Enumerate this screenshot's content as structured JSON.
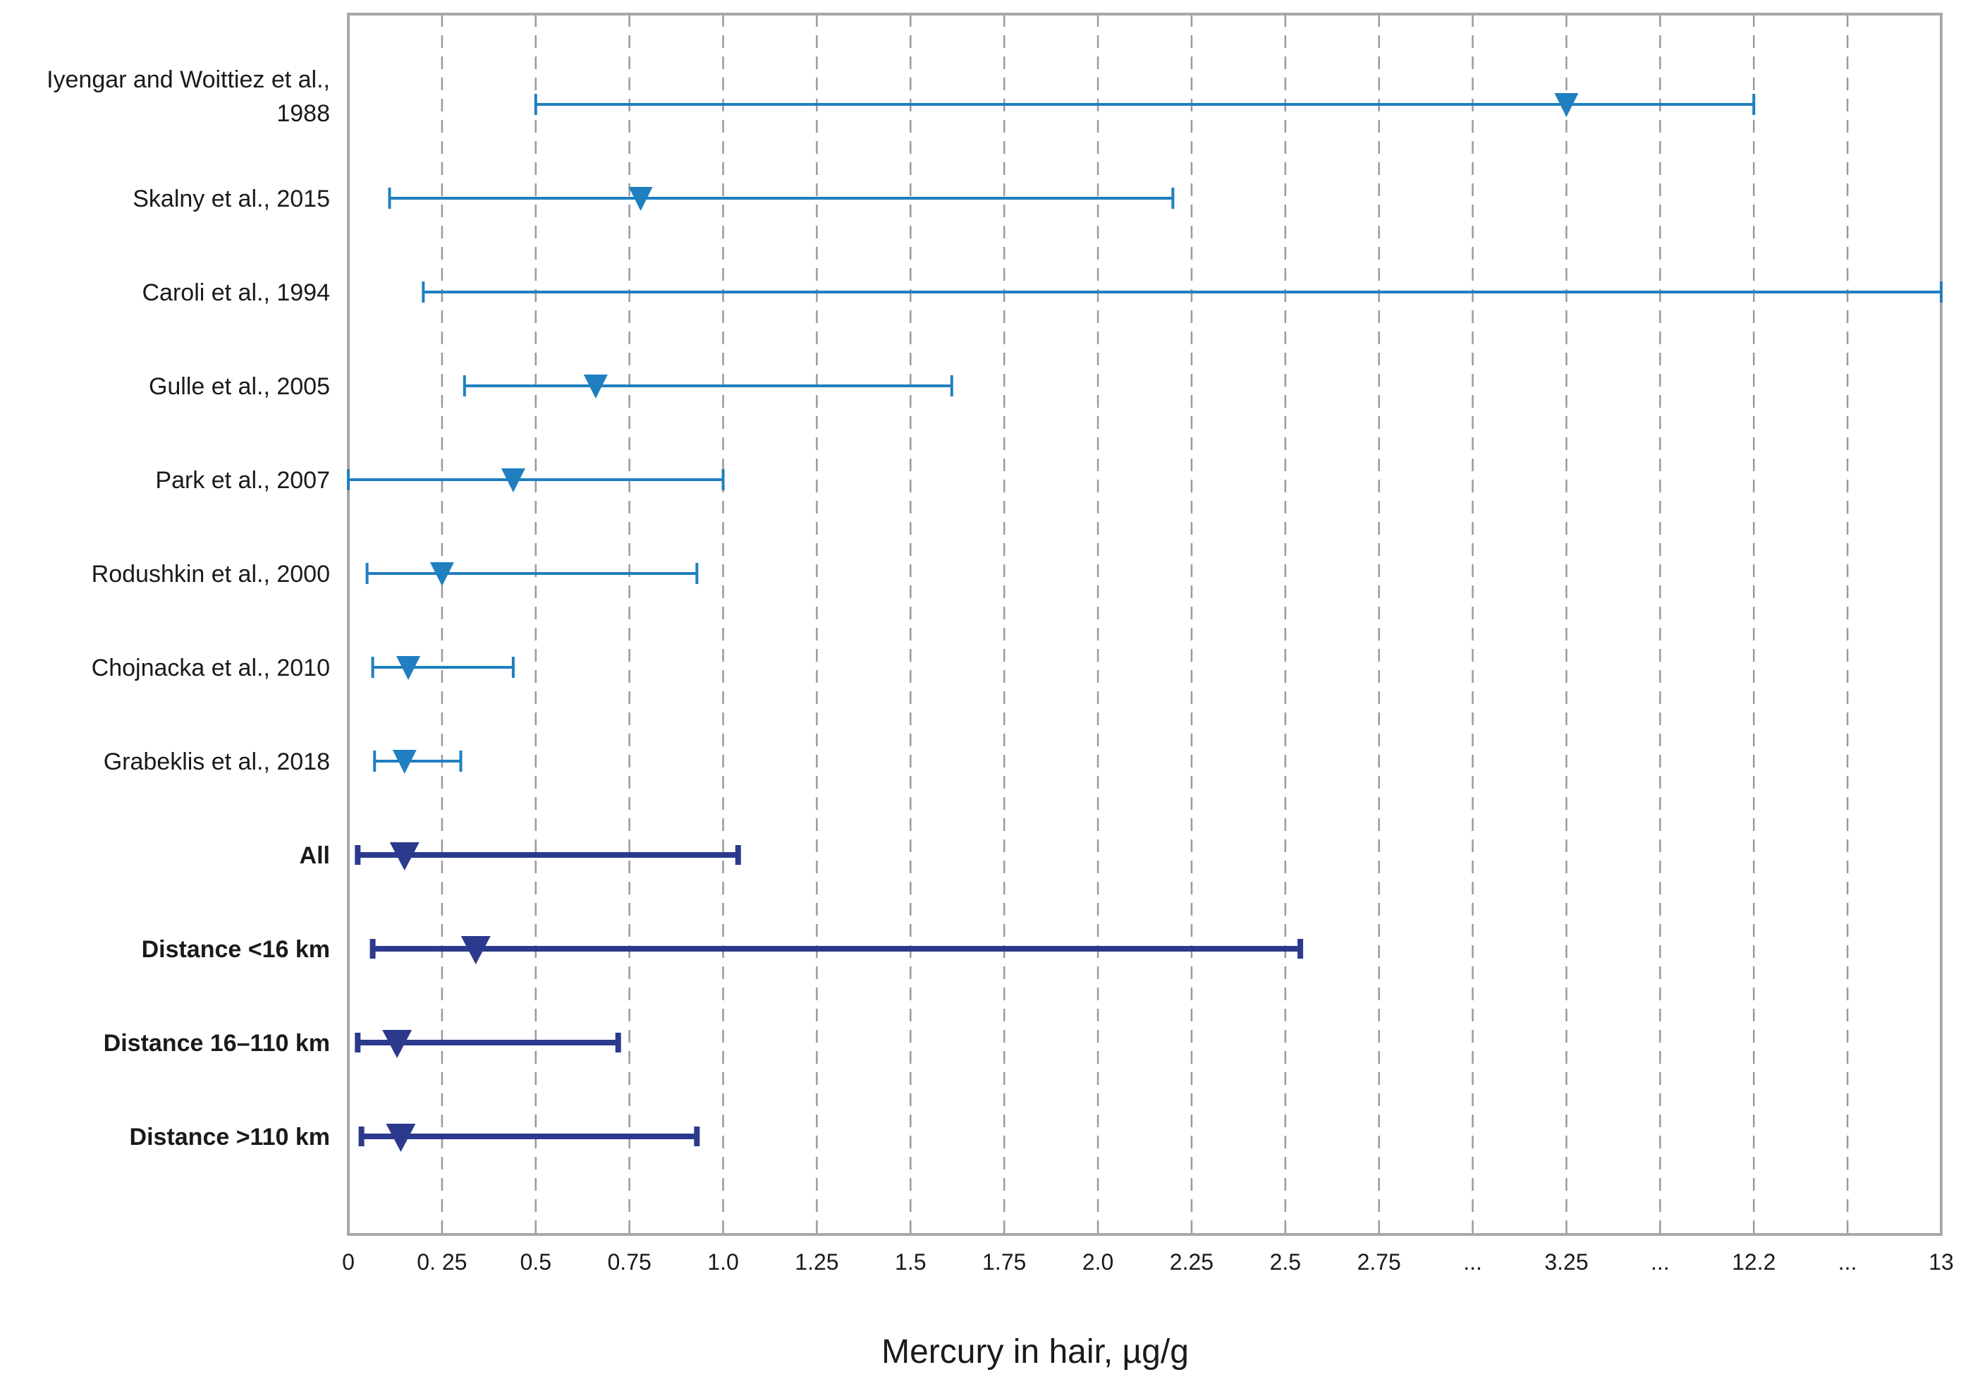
{
  "colors": {
    "study": "#1f7fc0",
    "summary": "#2b3a8c",
    "grid": "#9a9a9a",
    "frame": "#a8a8a8"
  },
  "chart_data": {
    "type": "range-dot",
    "title": "",
    "xlabel": "Mercury in hair, µg/g",
    "ylabel": "",
    "grid": "vertical dashed",
    "tick_labels": [
      "0",
      "0. 25",
      "0.5",
      "0.75",
      "1.0",
      "1.25",
      "1.5",
      "1.75",
      "2.0",
      "2.25",
      "2.5",
      "2.75",
      "...",
      "3.25",
      "...",
      "12.2",
      "...",
      "13"
    ],
    "rows": [
      {
        "label_lines": [
          "Iyengar and Woittiez et al.,",
          "1988"
        ],
        "kind": "study",
        "min": 0.5,
        "max": 12.2,
        "median": 3.25
      },
      {
        "label_lines": [
          "Skalny et al., 2015"
        ],
        "kind": "study",
        "min": 0.11,
        "max": 2.2,
        "median": 0.78
      },
      {
        "label_lines": [
          "Caroli et al., 1994"
        ],
        "kind": "study",
        "min": 0.2,
        "max": 13,
        "median": null
      },
      {
        "label_lines": [
          "Gulle et al., 2005"
        ],
        "kind": "study",
        "min": 0.31,
        "max": 1.61,
        "median": 0.66
      },
      {
        "label_lines": [
          "Park et al., 2007"
        ],
        "kind": "study",
        "min": 0.0,
        "max": 1.0,
        "median": 0.44
      },
      {
        "label_lines": [
          "Rodushkin et al., 2000"
        ],
        "kind": "study",
        "min": 0.05,
        "max": 0.93,
        "median": 0.25
      },
      {
        "label_lines": [
          "Chojnacka et al., 2010"
        ],
        "kind": "study",
        "min": 0.065,
        "max": 0.44,
        "median": 0.16
      },
      {
        "label_lines": [
          "Grabeklis et al., 2018"
        ],
        "kind": "study",
        "min": 0.07,
        "max": 0.3,
        "median": 0.15
      },
      {
        "label_lines": [
          "All"
        ],
        "kind": "summary",
        "min": 0.025,
        "max": 1.04,
        "median": 0.15
      },
      {
        "label_lines": [
          "Distance <16 km"
        ],
        "kind": "summary",
        "min": 0.065,
        "max": 2.54,
        "median": 0.34
      },
      {
        "label_lines": [
          "Distance 16–110 km"
        ],
        "kind": "summary",
        "min": 0.025,
        "max": 0.72,
        "median": 0.13
      },
      {
        "label_lines": [
          "Distance >110 km"
        ],
        "kind": "summary",
        "min": 0.035,
        "max": 0.93,
        "median": 0.14
      }
    ]
  }
}
